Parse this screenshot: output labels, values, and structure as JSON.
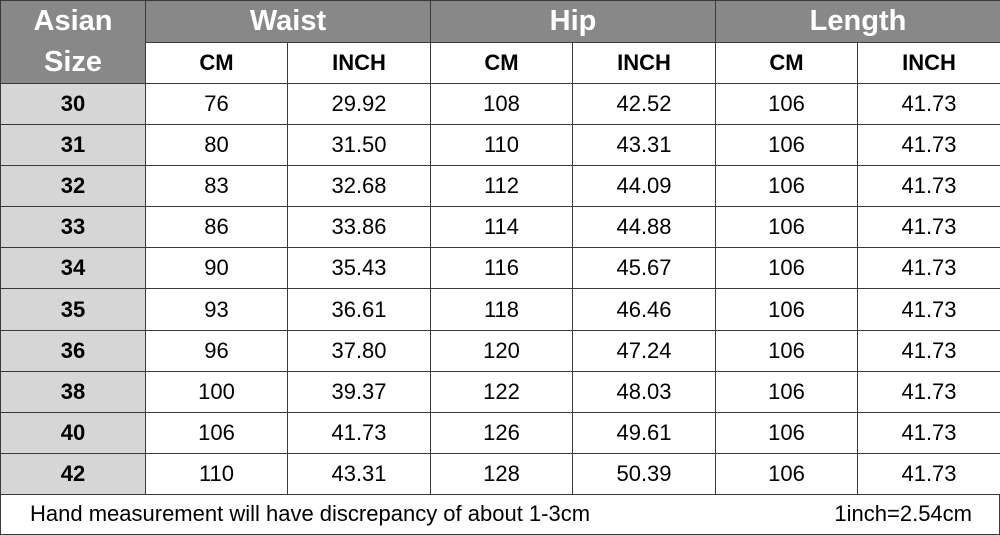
{
  "table": {
    "size_label": "Asian\nSize",
    "groups": [
      "Waist",
      "Hip",
      "Length"
    ],
    "units": [
      "CM",
      "INCH",
      "CM",
      "INCH",
      "CM",
      "INCH"
    ],
    "rows": [
      [
        "30",
        "76",
        "29.92",
        "108",
        "42.52",
        "106",
        "41.73"
      ],
      [
        "31",
        "80",
        "31.50",
        "110",
        "43.31",
        "106",
        "41.73"
      ],
      [
        "32",
        "83",
        "32.68",
        "112",
        "44.09",
        "106",
        "41.73"
      ],
      [
        "33",
        "86",
        "33.86",
        "114",
        "44.88",
        "106",
        "41.73"
      ],
      [
        "34",
        "90",
        "35.43",
        "116",
        "45.67",
        "106",
        "41.73"
      ],
      [
        "35",
        "93",
        "36.61",
        "118",
        "46.46",
        "106",
        "41.73"
      ],
      [
        "36",
        "96",
        "37.80",
        "120",
        "47.24",
        "106",
        "41.73"
      ],
      [
        "38",
        "100",
        "39.37",
        "122",
        "48.03",
        "106",
        "41.73"
      ],
      [
        "40",
        "106",
        "41.73",
        "126",
        "49.61",
        "106",
        "41.73"
      ],
      [
        "42",
        "110",
        "43.31",
        "128",
        "50.39",
        "106",
        "41.73"
      ]
    ]
  },
  "footer": {
    "note": "Hand measurement will have discrepancy of about 1-3cm",
    "conversion": "1inch=2.54cm"
  },
  "colors": {
    "header_bg": "#888888",
    "size_col_bg": "#d6d6d6",
    "border": "#3a3a3a"
  }
}
